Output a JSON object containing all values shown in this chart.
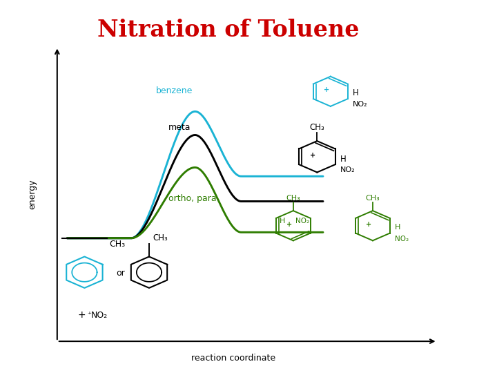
{
  "title": "Nitration of Toluene",
  "title_color": "#cc0000",
  "title_fontsize": 24,
  "bg_color": "#ffffff",
  "xlabel": "reaction coordinate",
  "ylabel": "energy",
  "curve_benzene_color": "#1ab3d4",
  "curve_meta_color": "#000000",
  "curve_orthopara_color": "#2e7d00",
  "label_benzene": "benzene",
  "label_meta": "meta",
  "label_orthopara": "ortho, para",
  "reactant_level": 0.35,
  "benzene_peak": 0.78,
  "meta_peak": 0.7,
  "orthopara_peak": 0.59,
  "benzene_product": 0.56,
  "meta_product": 0.475,
  "orthopara_product": 0.37
}
